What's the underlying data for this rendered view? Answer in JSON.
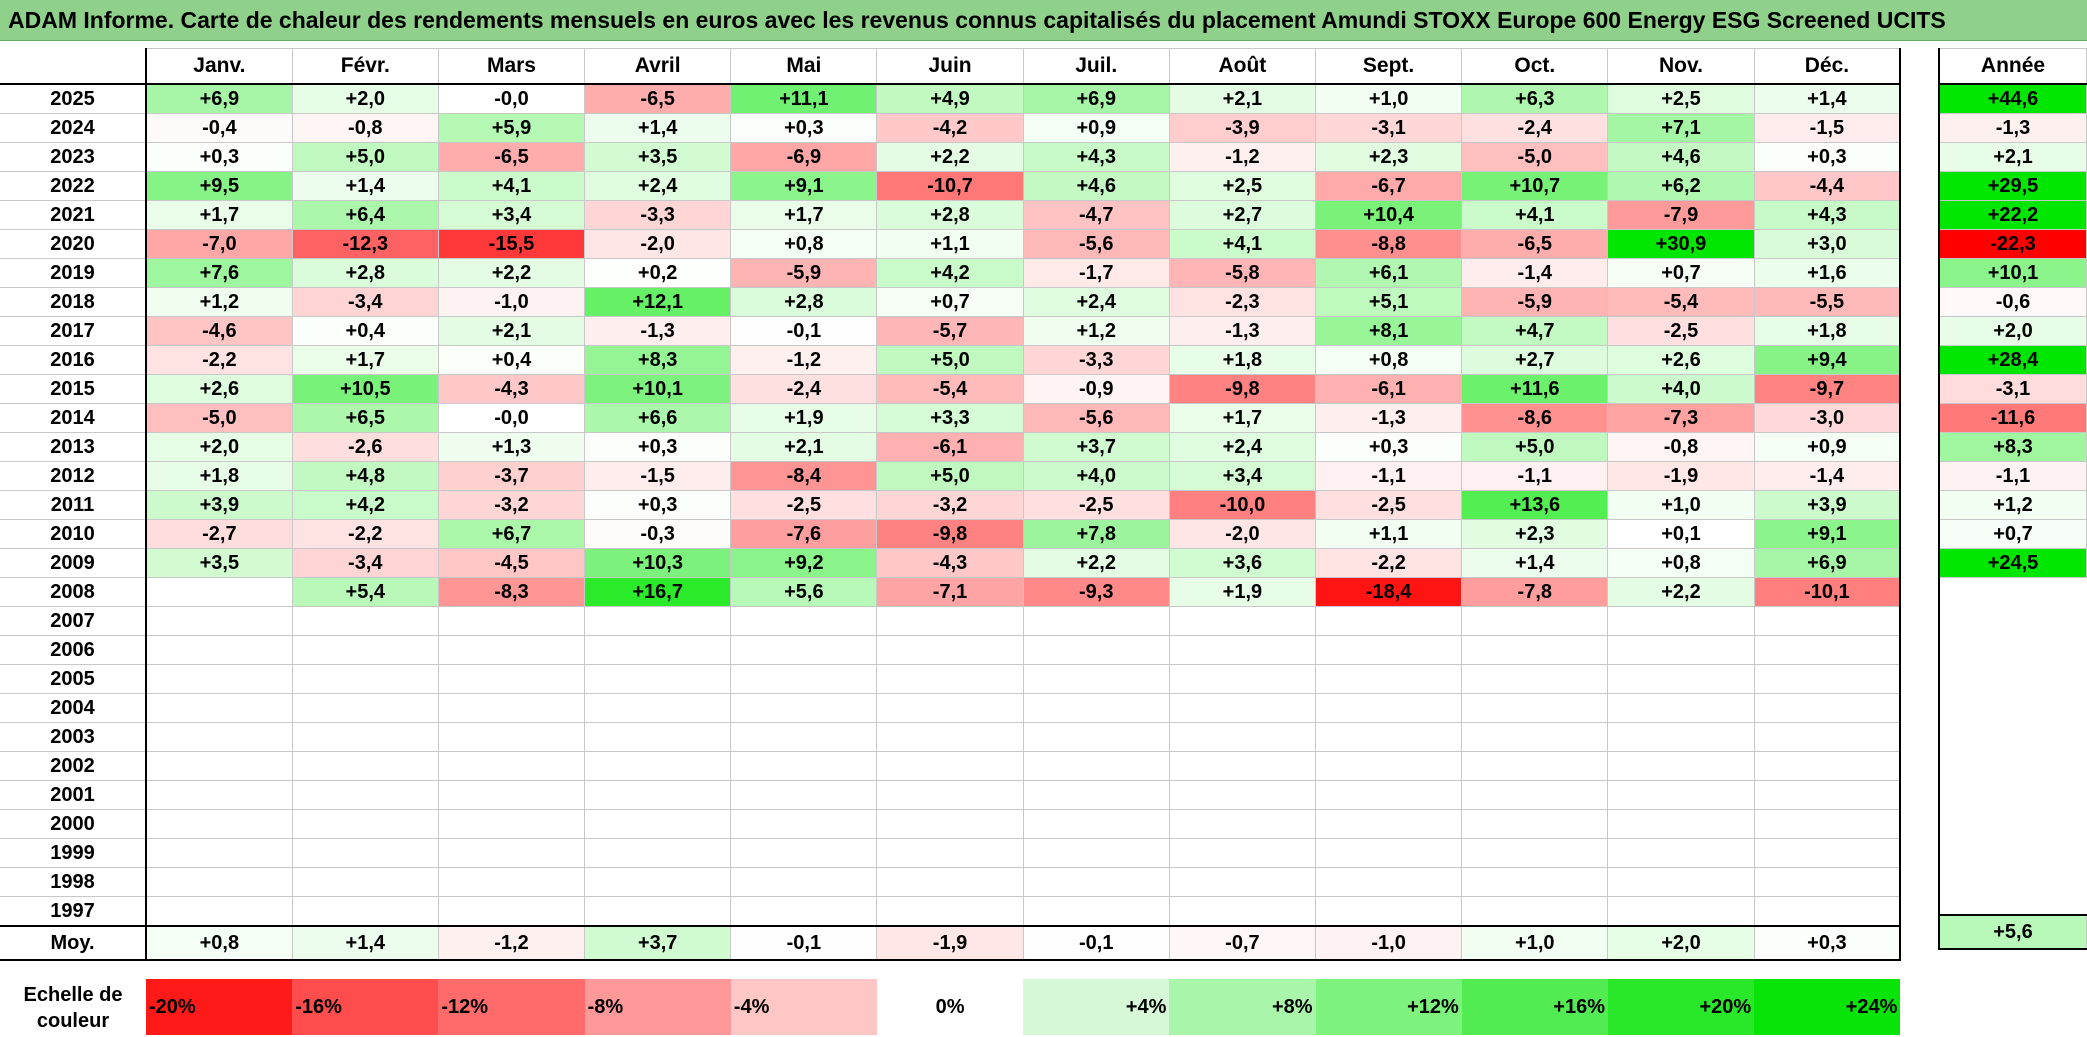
{
  "title": "ADAM Informe. Carte de chaleur des rendements mensuels en euros avec les revenus connus capitalisés du placement Amundi STOXX Europe 600 Energy ESG Screened UCITS",
  "chart_data": {
    "type": "heatmap",
    "title": "ADAM Informe. Carte de chaleur des rendements mensuels en euros avec les revenus connus capitalisés du placement Amundi STOXX Europe 600 Energy ESG Screened UCITS",
    "columns": [
      "Janv.",
      "Févr.",
      "Mars",
      "Avril",
      "Mai",
      "Juin",
      "Juil.",
      "Août",
      "Sept.",
      "Oct.",
      "Nov.",
      "Déc."
    ],
    "annual_header": "Année",
    "rows": [
      {
        "year": "2025",
        "months": [
          "+6,9",
          "+2,0",
          "-0,0",
          "-6,5",
          "+11,1",
          "+4,9",
          "+6,9",
          "+2,1",
          "+1,0",
          "+6,3",
          "+2,5",
          "+1,4"
        ],
        "annual": "+44,6"
      },
      {
        "year": "2024",
        "months": [
          "-0,4",
          "-0,8",
          "+5,9",
          "+1,4",
          "+0,3",
          "-4,2",
          "+0,9",
          "-3,9",
          "-3,1",
          "-2,4",
          "+7,1",
          "-1,5"
        ],
        "annual": "-1,3"
      },
      {
        "year": "2023",
        "months": [
          "+0,3",
          "+5,0",
          "-6,5",
          "+3,5",
          "-6,9",
          "+2,2",
          "+4,3",
          "-1,2",
          "+2,3",
          "-5,0",
          "+4,6",
          "+0,3"
        ],
        "annual": "+2,1"
      },
      {
        "year": "2022",
        "months": [
          "+9,5",
          "+1,4",
          "+4,1",
          "+2,4",
          "+9,1",
          "-10,7",
          "+4,6",
          "+2,5",
          "-6,7",
          "+10,7",
          "+6,2",
          "-4,4"
        ],
        "annual": "+29,5"
      },
      {
        "year": "2021",
        "months": [
          "+1,7",
          "+6,4",
          "+3,4",
          "-3,3",
          "+1,7",
          "+2,8",
          "-4,7",
          "+2,7",
          "+10,4",
          "+4,1",
          "-7,9",
          "+4,3"
        ],
        "annual": "+22,2"
      },
      {
        "year": "2020",
        "months": [
          "-7,0",
          "-12,3",
          "-15,5",
          "-2,0",
          "+0,8",
          "+1,1",
          "-5,6",
          "+4,1",
          "-8,8",
          "-6,5",
          "+30,9",
          "+3,0"
        ],
        "annual": "-22,3"
      },
      {
        "year": "2019",
        "months": [
          "+7,6",
          "+2,8",
          "+2,2",
          "+0,2",
          "-5,9",
          "+4,2",
          "-1,7",
          "-5,8",
          "+6,1",
          "-1,4",
          "+0,7",
          "+1,6"
        ],
        "annual": "+10,1"
      },
      {
        "year": "2018",
        "months": [
          "+1,2",
          "-3,4",
          "-1,0",
          "+12,1",
          "+2,8",
          "+0,7",
          "+2,4",
          "-2,3",
          "+5,1",
          "-5,9",
          "-5,4",
          "-5,5"
        ],
        "annual": "-0,6"
      },
      {
        "year": "2017",
        "months": [
          "-4,6",
          "+0,4",
          "+2,1",
          "-1,3",
          "-0,1",
          "-5,7",
          "+1,2",
          "-1,3",
          "+8,1",
          "+4,7",
          "-2,5",
          "+1,8"
        ],
        "annual": "+2,0"
      },
      {
        "year": "2016",
        "months": [
          "-2,2",
          "+1,7",
          "+0,4",
          "+8,3",
          "-1,2",
          "+5,0",
          "-3,3",
          "+1,8",
          "+0,8",
          "+2,7",
          "+2,6",
          "+9,4"
        ],
        "annual": "+28,4"
      },
      {
        "year": "2015",
        "months": [
          "+2,6",
          "+10,5",
          "-4,3",
          "+10,1",
          "-2,4",
          "-5,4",
          "-0,9",
          "-9,8",
          "-6,1",
          "+11,6",
          "+4,0",
          "-9,7"
        ],
        "annual": "-3,1"
      },
      {
        "year": "2014",
        "months": [
          "-5,0",
          "+6,5",
          "-0,0",
          "+6,6",
          "+1,9",
          "+3,3",
          "-5,6",
          "+1,7",
          "-1,3",
          "-8,6",
          "-7,3",
          "-3,0"
        ],
        "annual": "-11,6"
      },
      {
        "year": "2013",
        "months": [
          "+2,0",
          "-2,6",
          "+1,3",
          "+0,3",
          "+2,1",
          "-6,1",
          "+3,7",
          "+2,4",
          "+0,3",
          "+5,0",
          "-0,8",
          "+0,9"
        ],
        "annual": "+8,3"
      },
      {
        "year": "2012",
        "months": [
          "+1,8",
          "+4,8",
          "-3,7",
          "-1,5",
          "-8,4",
          "+5,0",
          "+4,0",
          "+3,4",
          "-1,1",
          "-1,1",
          "-1,9",
          "-1,4"
        ],
        "annual": "-1,1"
      },
      {
        "year": "2011",
        "months": [
          "+3,9",
          "+4,2",
          "-3,2",
          "+0,3",
          "-2,5",
          "-3,2",
          "-2,5",
          "-10,0",
          "-2,5",
          "+13,6",
          "+1,0",
          "+3,9"
        ],
        "annual": "+1,2"
      },
      {
        "year": "2010",
        "months": [
          "-2,7",
          "-2,2",
          "+6,7",
          "-0,3",
          "-7,6",
          "-9,8",
          "+7,8",
          "-2,0",
          "+1,1",
          "+2,3",
          "+0,1",
          "+9,1"
        ],
        "annual": "+0,7"
      },
      {
        "year": "2009",
        "months": [
          "+3,5",
          "-3,4",
          "-4,5",
          "+10,3",
          "+9,2",
          "-4,3",
          "+2,2",
          "+3,6",
          "-2,2",
          "+1,4",
          "+0,8",
          "+6,9"
        ],
        "annual": "+24,5"
      },
      {
        "year": "2008",
        "months": [
          "",
          "+5,4",
          "-8,3",
          "+16,7",
          "+5,6",
          "-7,1",
          "-9,3",
          "+1,9",
          "-18,4",
          "-7,8",
          "+2,2",
          "-10,1"
        ],
        "annual": ""
      },
      {
        "year": "2007",
        "months": [
          "",
          "",
          "",
          "",
          "",
          "",
          "",
          "",
          "",
          "",
          "",
          ""
        ],
        "annual": ""
      },
      {
        "year": "2006",
        "months": [
          "",
          "",
          "",
          "",
          "",
          "",
          "",
          "",
          "",
          "",
          "",
          ""
        ],
        "annual": ""
      },
      {
        "year": "2005",
        "months": [
          "",
          "",
          "",
          "",
          "",
          "",
          "",
          "",
          "",
          "",
          "",
          ""
        ],
        "annual": ""
      },
      {
        "year": "2004",
        "months": [
          "",
          "",
          "",
          "",
          "",
          "",
          "",
          "",
          "",
          "",
          "",
          ""
        ],
        "annual": ""
      },
      {
        "year": "2003",
        "months": [
          "",
          "",
          "",
          "",
          "",
          "",
          "",
          "",
          "",
          "",
          "",
          ""
        ],
        "annual": ""
      },
      {
        "year": "2002",
        "months": [
          "",
          "",
          "",
          "",
          "",
          "",
          "",
          "",
          "",
          "",
          "",
          ""
        ],
        "annual": ""
      },
      {
        "year": "2001",
        "months": [
          "",
          "",
          "",
          "",
          "",
          "",
          "",
          "",
          "",
          "",
          "",
          ""
        ],
        "annual": ""
      },
      {
        "year": "2000",
        "months": [
          "",
          "",
          "",
          "",
          "",
          "",
          "",
          "",
          "",
          "",
          "",
          ""
        ],
        "annual": ""
      },
      {
        "year": "1999",
        "months": [
          "",
          "",
          "",
          "",
          "",
          "",
          "",
          "",
          "",
          "",
          "",
          ""
        ],
        "annual": ""
      },
      {
        "year": "1998",
        "months": [
          "",
          "",
          "",
          "",
          "",
          "",
          "",
          "",
          "",
          "",
          "",
          ""
        ],
        "annual": ""
      },
      {
        "year": "1997",
        "months": [
          "",
          "",
          "",
          "",
          "",
          "",
          "",
          "",
          "",
          "",
          "",
          ""
        ],
        "annual": ""
      }
    ],
    "average": {
      "label": "Moy.",
      "months": [
        "+0,8",
        "+1,4",
        "-1,2",
        "+3,7",
        "-0,1",
        "-1,9",
        "-0,1",
        "-0,7",
        "-1,0",
        "+1,0",
        "+2,0",
        "+0,3"
      ],
      "annual": "+5,6"
    },
    "scale": {
      "label": "Echelle de couleur",
      "stops": [
        "-20%",
        "-16%",
        "-12%",
        "-8%",
        "-4%",
        "0%",
        "+4%",
        "+8%",
        "+12%",
        "+16%",
        "+20%",
        "+24%"
      ]
    },
    "colors": {
      "negative_max": "#ff0000",
      "neutral": "#ffffff",
      "positive_max": "#00e600",
      "title_bg": "#8fd18b"
    }
  }
}
